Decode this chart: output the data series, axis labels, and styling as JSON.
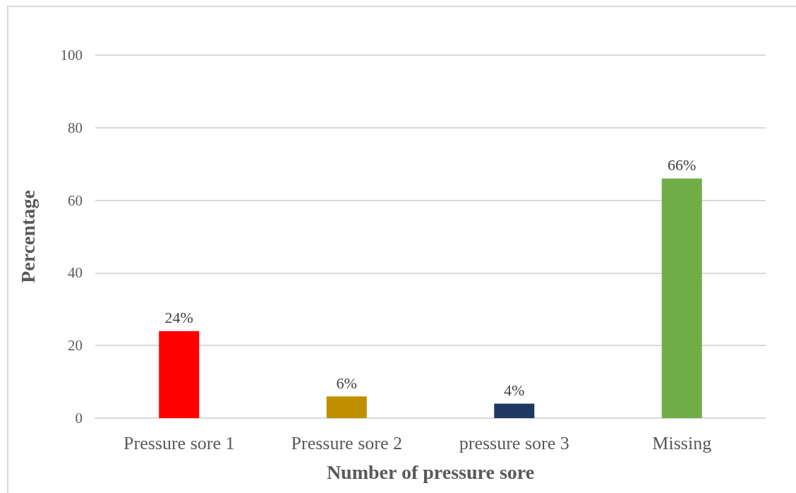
{
  "chart_data": {
    "type": "bar",
    "xlabel": "Number of pressure sore",
    "ylabel": "Percentage",
    "categories": [
      "Pressure sore 1",
      "Pressure sore 2",
      "pressure sore 3",
      "Missing"
    ],
    "values": [
      24,
      6,
      4,
      66
    ],
    "colors": [
      "#ff0000",
      "#bf8f00",
      "#203864",
      "#70ad47"
    ],
    "value_labels": [
      "24%",
      "6%",
      "4%",
      "66%"
    ],
    "ylim": [
      0,
      100
    ],
    "yticks": [
      0,
      20,
      40,
      60,
      80,
      100
    ],
    "grid": "y"
  }
}
